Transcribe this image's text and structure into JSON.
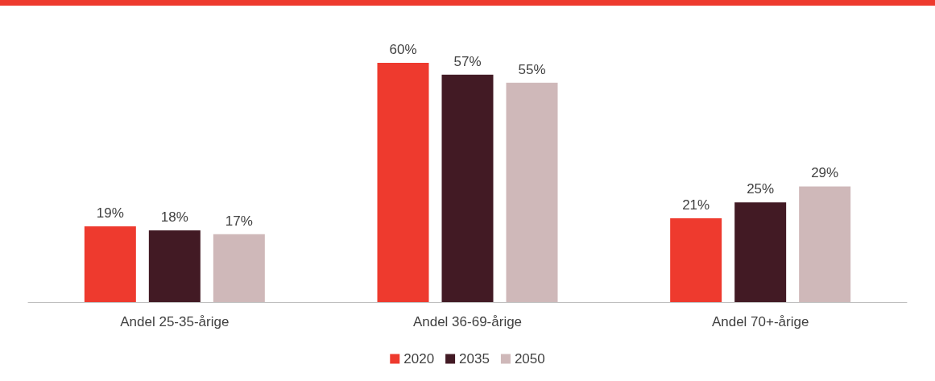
{
  "chart_data": {
    "type": "bar",
    "categories": [
      "Andel 25-35-årige",
      "Andel 36-69-årige",
      "Andel 70+-årige"
    ],
    "series": [
      {
        "name": "2020",
        "color": "#ee3a2e",
        "values": [
          19,
          60,
          21
        ],
        "value_labels": [
          "19%",
          "60%",
          "21%"
        ]
      },
      {
        "name": "2035",
        "color": "#421a24",
        "values": [
          18,
          57,
          25
        ],
        "value_labels": [
          "18%",
          "57%",
          "25%"
        ]
      },
      {
        "name": "2050",
        "color": "#cfb8b9",
        "values": [
          17,
          55,
          29
        ],
        "value_labels": [
          "17%",
          "55%",
          "29%"
        ]
      }
    ],
    "legend": "bottom"
  }
}
